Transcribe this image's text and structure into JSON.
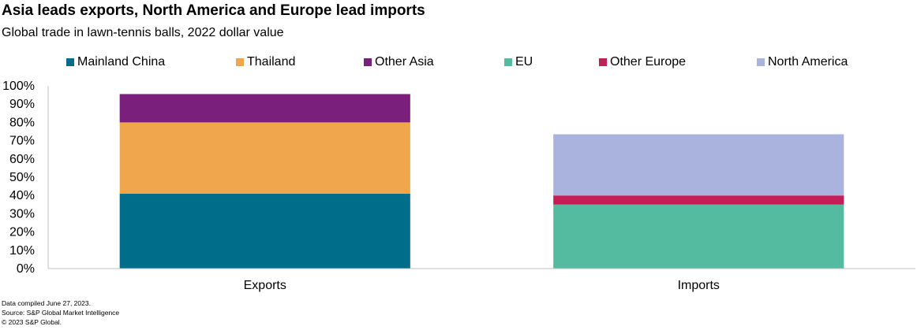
{
  "header": {
    "title": "Asia leads exports, North America and Europe lead imports",
    "subtitle": "Global trade in lawn-tennis balls, 2022 dollar value"
  },
  "footer": {
    "compiled": "Data compiled June 27, 2023.",
    "source": "Source: S&P Global Market Intelligence",
    "copyright": "© 2023 S&P Global."
  },
  "chart_data": {
    "type": "bar",
    "stacked": true,
    "categories": [
      "Exports",
      "Imports"
    ],
    "series": [
      {
        "name": "Mainland China",
        "color": "#006e8a",
        "values": [
          41,
          0
        ]
      },
      {
        "name": "Thailand",
        "color": "#f0a64c",
        "values": [
          39,
          0
        ]
      },
      {
        "name": "Other Asia",
        "color": "#7b1f7d",
        "values": [
          15.5,
          0
        ]
      },
      {
        "name": "EU",
        "color": "#55bba0",
        "values": [
          0,
          35
        ]
      },
      {
        "name": "Other Europe",
        "color": "#c41e56",
        "values": [
          0,
          5
        ]
      },
      {
        "name": "North America",
        "color": "#a9b3dd",
        "values": [
          0,
          33.5
        ]
      }
    ],
    "ylim": [
      0,
      100
    ],
    "yticks": [
      "0%",
      "10%",
      "20%",
      "30%",
      "40%",
      "50%",
      "60%",
      "70%",
      "80%",
      "90%",
      "100%"
    ],
    "y_unit": "%",
    "legend_position": "top",
    "grid": false
  }
}
